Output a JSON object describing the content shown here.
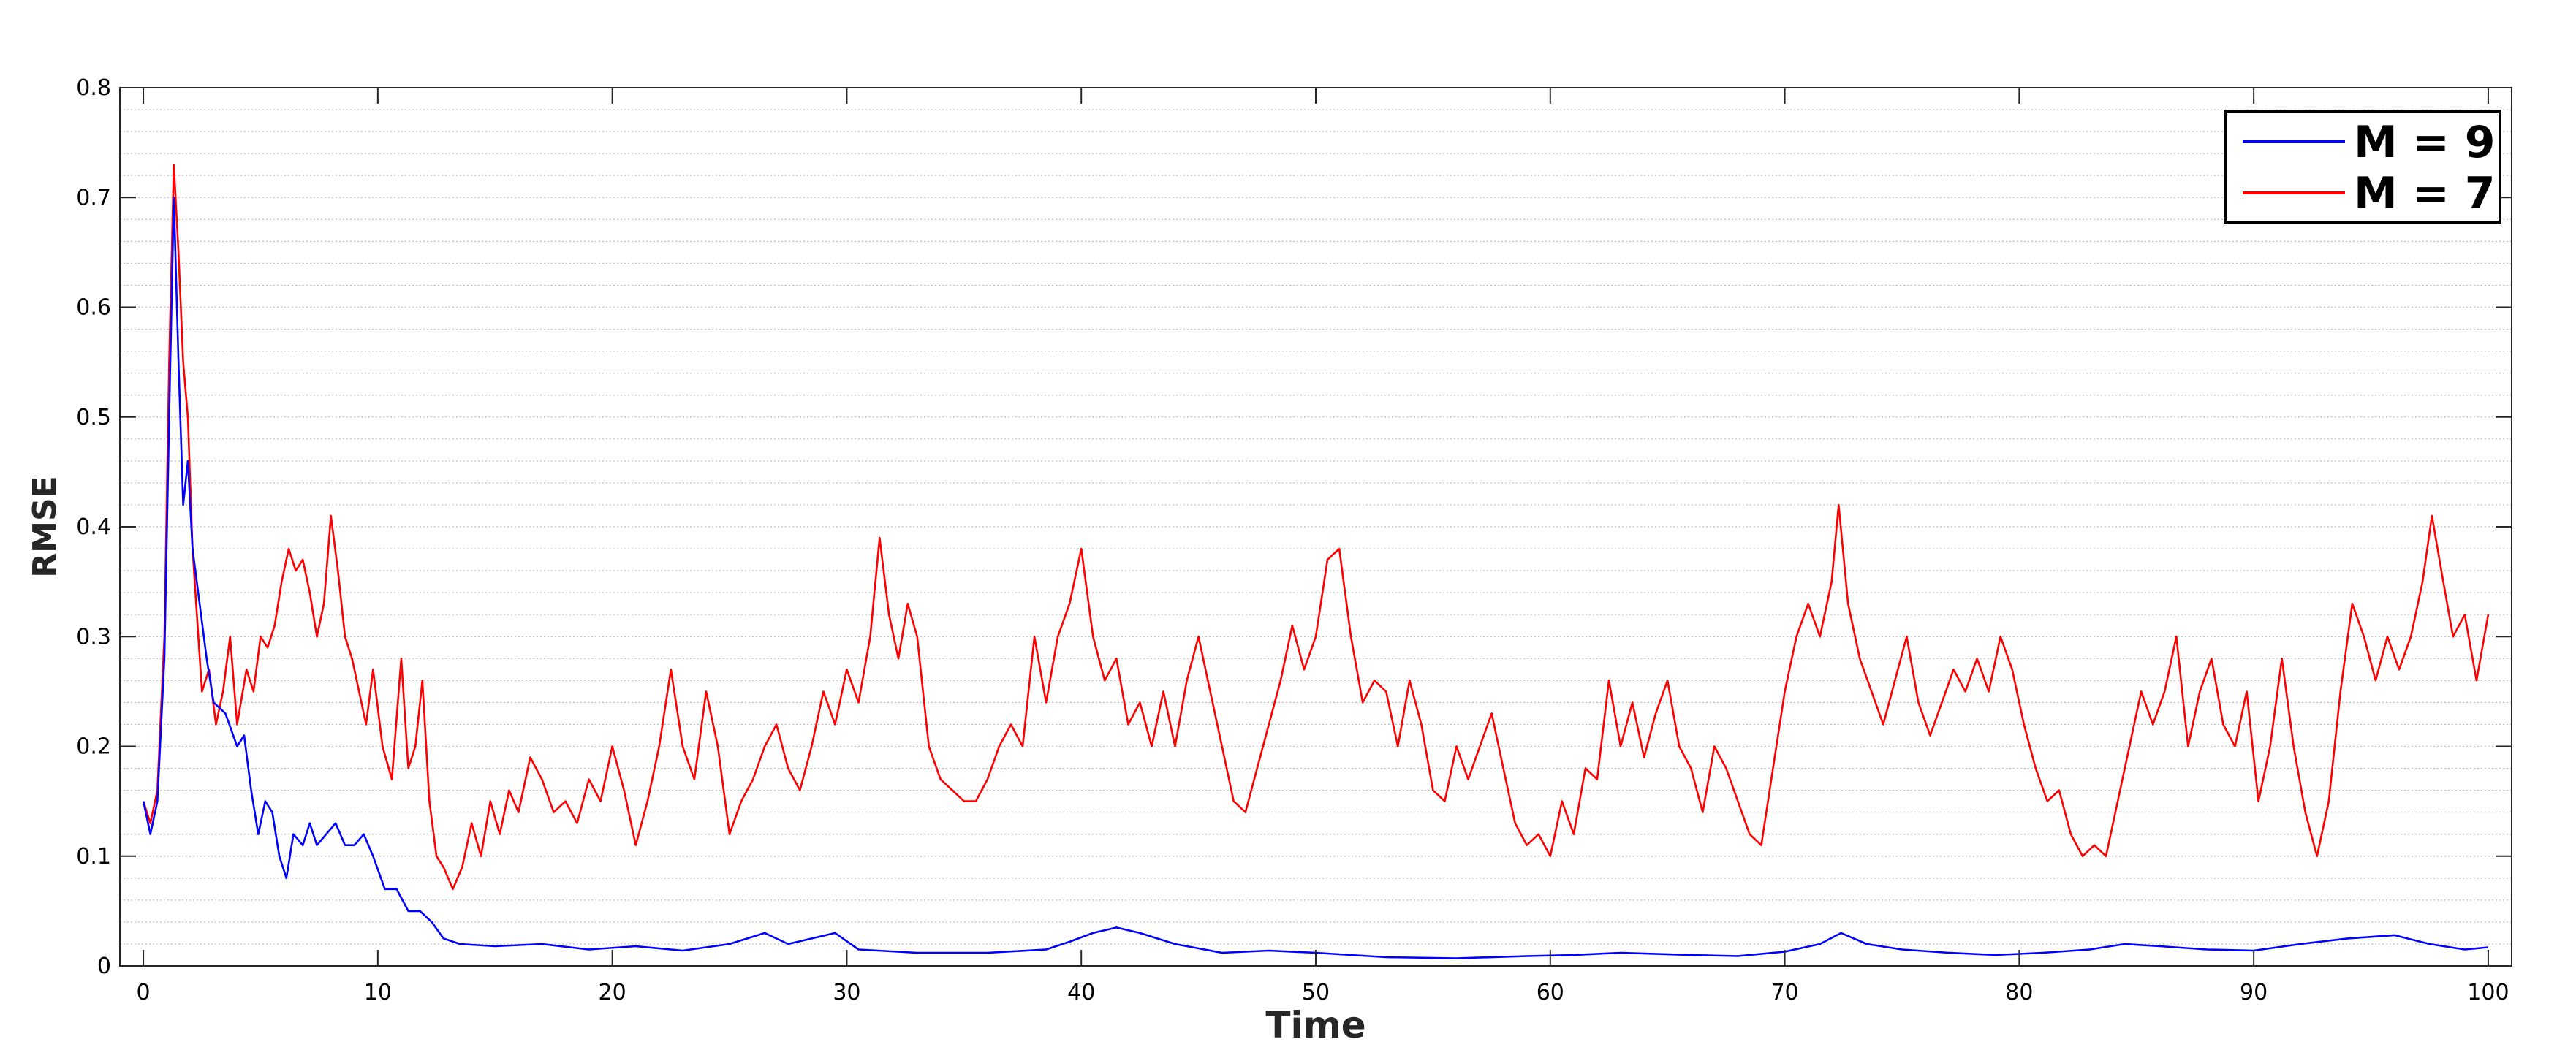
{
  "chart_data": {
    "type": "line",
    "title": "",
    "xlabel": "Time",
    "ylabel": "RMSE",
    "xlim": [
      -1,
      101
    ],
    "ylim": [
      0,
      0.8
    ],
    "xticks": [
      0,
      10,
      20,
      30,
      40,
      50,
      60,
      70,
      80,
      90,
      100
    ],
    "xtick_labels": [
      "0",
      "10",
      "20",
      "30",
      "40",
      "50",
      "60",
      "70",
      "80",
      "90",
      "100"
    ],
    "yticks": [
      0,
      0.1,
      0.2,
      0.3,
      0.4,
      0.5,
      0.6,
      0.7,
      0.8
    ],
    "ytick_labels": [
      "0",
      "0.1",
      "0.2",
      "0.3",
      "0.4",
      "0.5",
      "0.6",
      "0.7",
      "0.8"
    ],
    "grid": "horizontal minor dotted",
    "legend_position": "top-right",
    "series": [
      {
        "name": "M = 9",
        "color": "#0000ff",
        "points": [
          [
            0,
            0.15
          ],
          [
            0.3,
            0.12
          ],
          [
            0.6,
            0.15
          ],
          [
            0.9,
            0.28
          ],
          [
            1.1,
            0.5
          ],
          [
            1.3,
            0.7
          ],
          [
            1.5,
            0.55
          ],
          [
            1.7,
            0.42
          ],
          [
            1.9,
            0.46
          ],
          [
            2.1,
            0.38
          ],
          [
            2.4,
            0.33
          ],
          [
            2.7,
            0.28
          ],
          [
            3.0,
            0.24
          ],
          [
            3.5,
            0.23
          ],
          [
            4.0,
            0.2
          ],
          [
            4.3,
            0.21
          ],
          [
            4.6,
            0.16
          ],
          [
            4.9,
            0.12
          ],
          [
            5.2,
            0.15
          ],
          [
            5.5,
            0.14
          ],
          [
            5.8,
            0.1
          ],
          [
            6.1,
            0.08
          ],
          [
            6.4,
            0.12
          ],
          [
            6.8,
            0.11
          ],
          [
            7.1,
            0.13
          ],
          [
            7.4,
            0.11
          ],
          [
            7.8,
            0.12
          ],
          [
            8.2,
            0.13
          ],
          [
            8.6,
            0.11
          ],
          [
            9.0,
            0.11
          ],
          [
            9.4,
            0.12
          ],
          [
            9.8,
            0.1
          ],
          [
            10.3,
            0.07
          ],
          [
            10.8,
            0.07
          ],
          [
            11.3,
            0.05
          ],
          [
            11.8,
            0.05
          ],
          [
            12.3,
            0.04
          ],
          [
            12.8,
            0.025
          ],
          [
            13.5,
            0.02
          ],
          [
            15,
            0.018
          ],
          [
            17,
            0.02
          ],
          [
            19,
            0.015
          ],
          [
            21,
            0.018
          ],
          [
            23,
            0.014
          ],
          [
            25,
            0.02
          ],
          [
            26.5,
            0.03
          ],
          [
            27.5,
            0.02
          ],
          [
            29.5,
            0.03
          ],
          [
            30.5,
            0.015
          ],
          [
            33,
            0.012
          ],
          [
            36,
            0.012
          ],
          [
            38.5,
            0.015
          ],
          [
            39.5,
            0.022
          ],
          [
            40.5,
            0.03
          ],
          [
            41.5,
            0.035
          ],
          [
            42.5,
            0.03
          ],
          [
            44,
            0.02
          ],
          [
            46,
            0.012
          ],
          [
            48,
            0.014
          ],
          [
            50,
            0.012
          ],
          [
            53,
            0.008
          ],
          [
            56,
            0.007
          ],
          [
            59,
            0.009
          ],
          [
            61,
            0.01
          ],
          [
            63,
            0.012
          ],
          [
            66,
            0.01
          ],
          [
            68,
            0.009
          ],
          [
            70,
            0.013
          ],
          [
            71.5,
            0.02
          ],
          [
            72.4,
            0.03
          ],
          [
            73.5,
            0.02
          ],
          [
            75,
            0.015
          ],
          [
            77,
            0.012
          ],
          [
            79,
            0.01
          ],
          [
            81,
            0.012
          ],
          [
            83,
            0.015
          ],
          [
            84.5,
            0.02
          ],
          [
            86,
            0.018
          ],
          [
            88,
            0.015
          ],
          [
            90,
            0.014
          ],
          [
            92,
            0.02
          ],
          [
            94,
            0.025
          ],
          [
            96,
            0.028
          ],
          [
            97.5,
            0.02
          ],
          [
            99,
            0.015
          ],
          [
            100,
            0.017
          ]
        ]
      },
      {
        "name": "M = 7",
        "color": "#ff0000",
        "points": [
          [
            0,
            0.15
          ],
          [
            0.3,
            0.13
          ],
          [
            0.6,
            0.16
          ],
          [
            0.9,
            0.3
          ],
          [
            1.1,
            0.55
          ],
          [
            1.3,
            0.73
          ],
          [
            1.5,
            0.65
          ],
          [
            1.7,
            0.55
          ],
          [
            1.9,
            0.5
          ],
          [
            2.1,
            0.38
          ],
          [
            2.5,
            0.25
          ],
          [
            2.8,
            0.27
          ],
          [
            3.1,
            0.22
          ],
          [
            3.4,
            0.25
          ],
          [
            3.7,
            0.3
          ],
          [
            4.0,
            0.22
          ],
          [
            4.4,
            0.27
          ],
          [
            4.7,
            0.25
          ],
          [
            5.0,
            0.3
          ],
          [
            5.3,
            0.29
          ],
          [
            5.6,
            0.31
          ],
          [
            5.9,
            0.35
          ],
          [
            6.2,
            0.38
          ],
          [
            6.5,
            0.36
          ],
          [
            6.8,
            0.37
          ],
          [
            7.1,
            0.34
          ],
          [
            7.4,
            0.3
          ],
          [
            7.7,
            0.33
          ],
          [
            8.0,
            0.41
          ],
          [
            8.3,
            0.36
          ],
          [
            8.6,
            0.3
          ],
          [
            8.9,
            0.28
          ],
          [
            9.2,
            0.25
          ],
          [
            9.5,
            0.22
          ],
          [
            9.8,
            0.27
          ],
          [
            10.2,
            0.2
          ],
          [
            10.6,
            0.17
          ],
          [
            11.0,
            0.28
          ],
          [
            11.3,
            0.18
          ],
          [
            11.6,
            0.2
          ],
          [
            11.9,
            0.26
          ],
          [
            12.2,
            0.15
          ],
          [
            12.5,
            0.1
          ],
          [
            12.8,
            0.09
          ],
          [
            13.2,
            0.07
          ],
          [
            13.6,
            0.09
          ],
          [
            14.0,
            0.13
          ],
          [
            14.4,
            0.1
          ],
          [
            14.8,
            0.15
          ],
          [
            15.2,
            0.12
          ],
          [
            15.6,
            0.16
          ],
          [
            16.0,
            0.14
          ],
          [
            16.5,
            0.19
          ],
          [
            17.0,
            0.17
          ],
          [
            17.5,
            0.14
          ],
          [
            18.0,
            0.15
          ],
          [
            18.5,
            0.13
          ],
          [
            19.0,
            0.17
          ],
          [
            19.5,
            0.15
          ],
          [
            20.0,
            0.2
          ],
          [
            20.5,
            0.16
          ],
          [
            21.0,
            0.11
          ],
          [
            21.5,
            0.15
          ],
          [
            22.0,
            0.2
          ],
          [
            22.5,
            0.27
          ],
          [
            23.0,
            0.2
          ],
          [
            23.5,
            0.17
          ],
          [
            24.0,
            0.25
          ],
          [
            24.5,
            0.2
          ],
          [
            25.0,
            0.12
          ],
          [
            25.5,
            0.15
          ],
          [
            26.0,
            0.17
          ],
          [
            26.5,
            0.2
          ],
          [
            27.0,
            0.22
          ],
          [
            27.5,
            0.18
          ],
          [
            28.0,
            0.16
          ],
          [
            28.5,
            0.2
          ],
          [
            29.0,
            0.25
          ],
          [
            29.5,
            0.22
          ],
          [
            30.0,
            0.27
          ],
          [
            30.5,
            0.24
          ],
          [
            31.0,
            0.3
          ],
          [
            31.4,
            0.39
          ],
          [
            31.8,
            0.32
          ],
          [
            32.2,
            0.28
          ],
          [
            32.6,
            0.33
          ],
          [
            33.0,
            0.3
          ],
          [
            33.5,
            0.2
          ],
          [
            34.0,
            0.17
          ],
          [
            34.5,
            0.16
          ],
          [
            35.0,
            0.15
          ],
          [
            35.5,
            0.15
          ],
          [
            36.0,
            0.17
          ],
          [
            36.5,
            0.2
          ],
          [
            37.0,
            0.22
          ],
          [
            37.5,
            0.2
          ],
          [
            38.0,
            0.3
          ],
          [
            38.5,
            0.24
          ],
          [
            39.0,
            0.3
          ],
          [
            39.5,
            0.33
          ],
          [
            40.0,
            0.38
          ],
          [
            40.5,
            0.3
          ],
          [
            41.0,
            0.26
          ],
          [
            41.5,
            0.28
          ],
          [
            42.0,
            0.22
          ],
          [
            42.5,
            0.24
          ],
          [
            43.0,
            0.2
          ],
          [
            43.5,
            0.25
          ],
          [
            44.0,
            0.2
          ],
          [
            44.5,
            0.26
          ],
          [
            45.0,
            0.3
          ],
          [
            45.5,
            0.25
          ],
          [
            46.0,
            0.2
          ],
          [
            46.5,
            0.15
          ],
          [
            47.0,
            0.14
          ],
          [
            47.5,
            0.18
          ],
          [
            48.0,
            0.22
          ],
          [
            48.5,
            0.26
          ],
          [
            49.0,
            0.31
          ],
          [
            49.5,
            0.27
          ],
          [
            50.0,
            0.3
          ],
          [
            50.5,
            0.37
          ],
          [
            51.0,
            0.38
          ],
          [
            51.5,
            0.3
          ],
          [
            52.0,
            0.24
          ],
          [
            52.5,
            0.26
          ],
          [
            53.0,
            0.25
          ],
          [
            53.5,
            0.2
          ],
          [
            54.0,
            0.26
          ],
          [
            54.5,
            0.22
          ],
          [
            55.0,
            0.16
          ],
          [
            55.5,
            0.15
          ],
          [
            56.0,
            0.2
          ],
          [
            56.5,
            0.17
          ],
          [
            57.0,
            0.2
          ],
          [
            57.5,
            0.23
          ],
          [
            58.0,
            0.18
          ],
          [
            58.5,
            0.13
          ],
          [
            59.0,
            0.11
          ],
          [
            59.5,
            0.12
          ],
          [
            60.0,
            0.1
          ],
          [
            60.5,
            0.15
          ],
          [
            61.0,
            0.12
          ],
          [
            61.5,
            0.18
          ],
          [
            62.0,
            0.17
          ],
          [
            62.5,
            0.26
          ],
          [
            63.0,
            0.2
          ],
          [
            63.5,
            0.24
          ],
          [
            64.0,
            0.19
          ],
          [
            64.5,
            0.23
          ],
          [
            65.0,
            0.26
          ],
          [
            65.5,
            0.2
          ],
          [
            66.0,
            0.18
          ],
          [
            66.5,
            0.14
          ],
          [
            67.0,
            0.2
          ],
          [
            67.5,
            0.18
          ],
          [
            68.0,
            0.15
          ],
          [
            68.5,
            0.12
          ],
          [
            69.0,
            0.11
          ],
          [
            69.5,
            0.18
          ],
          [
            70.0,
            0.25
          ],
          [
            70.5,
            0.3
          ],
          [
            71.0,
            0.33
          ],
          [
            71.5,
            0.3
          ],
          [
            72.0,
            0.35
          ],
          [
            72.3,
            0.42
          ],
          [
            72.7,
            0.33
          ],
          [
            73.2,
            0.28
          ],
          [
            73.7,
            0.25
          ],
          [
            74.2,
            0.22
          ],
          [
            74.7,
            0.26
          ],
          [
            75.2,
            0.3
          ],
          [
            75.7,
            0.24
          ],
          [
            76.2,
            0.21
          ],
          [
            76.7,
            0.24
          ],
          [
            77.2,
            0.27
          ],
          [
            77.7,
            0.25
          ],
          [
            78.2,
            0.28
          ],
          [
            78.7,
            0.25
          ],
          [
            79.2,
            0.3
          ],
          [
            79.7,
            0.27
          ],
          [
            80.2,
            0.22
          ],
          [
            80.7,
            0.18
          ],
          [
            81.2,
            0.15
          ],
          [
            81.7,
            0.16
          ],
          [
            82.2,
            0.12
          ],
          [
            82.7,
            0.1
          ],
          [
            83.2,
            0.11
          ],
          [
            83.7,
            0.1
          ],
          [
            84.2,
            0.15
          ],
          [
            84.7,
            0.2
          ],
          [
            85.2,
            0.25
          ],
          [
            85.7,
            0.22
          ],
          [
            86.2,
            0.25
          ],
          [
            86.7,
            0.3
          ],
          [
            87.2,
            0.2
          ],
          [
            87.7,
            0.25
          ],
          [
            88.2,
            0.28
          ],
          [
            88.7,
            0.22
          ],
          [
            89.2,
            0.2
          ],
          [
            89.7,
            0.25
          ],
          [
            90.2,
            0.15
          ],
          [
            90.7,
            0.2
          ],
          [
            91.2,
            0.28
          ],
          [
            91.7,
            0.2
          ],
          [
            92.2,
            0.14
          ],
          [
            92.7,
            0.1
          ],
          [
            93.2,
            0.15
          ],
          [
            93.7,
            0.25
          ],
          [
            94.2,
            0.33
          ],
          [
            94.7,
            0.3
          ],
          [
            95.2,
            0.26
          ],
          [
            95.7,
            0.3
          ],
          [
            96.2,
            0.27
          ],
          [
            96.7,
            0.3
          ],
          [
            97.2,
            0.35
          ],
          [
            97.6,
            0.41
          ],
          [
            98.0,
            0.36
          ],
          [
            98.5,
            0.3
          ],
          [
            99.0,
            0.32
          ],
          [
            99.5,
            0.26
          ],
          [
            100,
            0.32
          ]
        ]
      }
    ]
  }
}
